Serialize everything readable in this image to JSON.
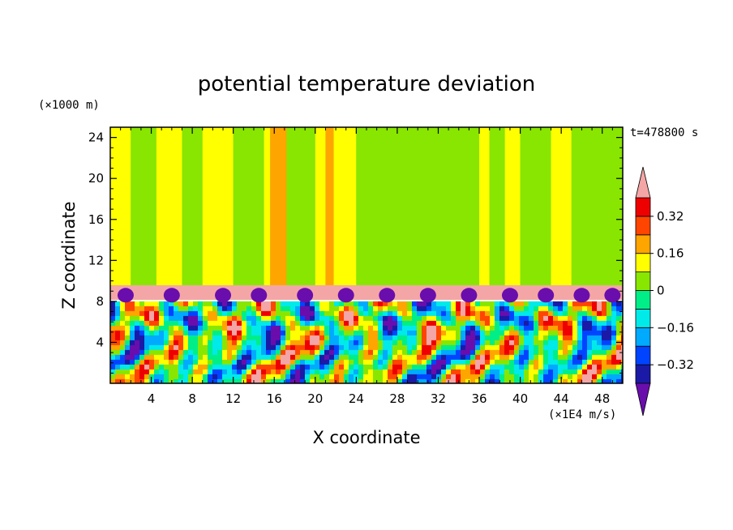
{
  "chart_data": {
    "type": "heatmap",
    "title": "potential temperature deviation",
    "xlabel": "X coordinate",
    "ylabel": "Z coordinate",
    "x_unit": "(×1E4 m/s)",
    "y_unit": "(×1000 m)",
    "time_label": "t=478800 s",
    "xlim": [
      0,
      50
    ],
    "ylim": [
      0,
      25
    ],
    "x_ticks": [
      4,
      8,
      12,
      16,
      20,
      24,
      28,
      32,
      36,
      40,
      44,
      48
    ],
    "y_ticks": [
      4,
      8,
      12,
      16,
      20,
      24
    ],
    "layers": {
      "mixed_layer_top": 8,
      "inversion_top": 9.5,
      "domain_top": 25
    },
    "colorbar": {
      "levels": [
        -0.4,
        -0.32,
        -0.24,
        -0.16,
        -0.08,
        0,
        0.08,
        0.16,
        0.24,
        0.32,
        0.4
      ],
      "labels": [
        "0.32",
        "0.16",
        "0",
        "−0.16",
        "−0.32"
      ],
      "label_values": [
        0.32,
        0.16,
        0,
        -0.16,
        -0.32
      ],
      "colors": [
        "#6a0dad",
        "#1a1aa6",
        "#0044ff",
        "#00aaff",
        "#00eaea",
        "#00ee88",
        "#88e600",
        "#ffff00",
        "#ffa500",
        "#ff4500",
        "#ee0000",
        "#f4a6a6"
      ]
    },
    "upper_bands": [
      {
        "x0": 0,
        "x1": 2,
        "value": 0.1
      },
      {
        "x0": 2,
        "x1": 4.5,
        "value": 0.05
      },
      {
        "x0": 4.5,
        "x1": 7,
        "value": 0.1
      },
      {
        "x0": 7,
        "x1": 9,
        "value": 0.02
      },
      {
        "x0": 9,
        "x1": 12,
        "value": 0.1
      },
      {
        "x0": 12,
        "x1": 15,
        "value": 0.02
      },
      {
        "x0": 15,
        "x1": 15.6,
        "value": 0.1
      },
      {
        "x0": 15.6,
        "x1": 17.2,
        "value": 0.2
      },
      {
        "x0": 17.2,
        "x1": 20,
        "value": 0.02
      },
      {
        "x0": 20,
        "x1": 21,
        "value": 0.1
      },
      {
        "x0": 21,
        "x1": 21.8,
        "value": 0.2
      },
      {
        "x0": 21.8,
        "x1": 24,
        "value": 0.1
      },
      {
        "x0": 24,
        "x1": 36,
        "value": 0.02
      },
      {
        "x0": 36,
        "x1": 37,
        "value": 0.1
      },
      {
        "x0": 37,
        "x1": 38.5,
        "value": 0.02
      },
      {
        "x0": 38.5,
        "x1": 40,
        "value": 0.1
      },
      {
        "x0": 40,
        "x1": 43,
        "value": 0.02
      },
      {
        "x0": 43,
        "x1": 45,
        "value": 0.1
      },
      {
        "x0": 45,
        "x1": 50,
        "value": 0.02
      }
    ]
  }
}
